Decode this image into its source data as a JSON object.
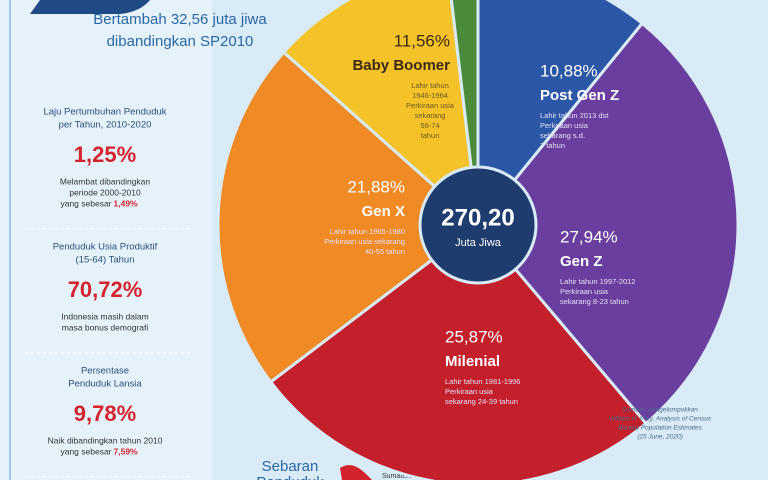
{
  "header": {
    "lines": [
      "Bertambah 32,56 juta jiwa",
      "dibandingkan SP2010"
    ]
  },
  "sidebar": [
    {
      "title": [
        "Laju Pertumbuhan Penduduk",
        "per Tahun, 2010-2020"
      ],
      "value": "1,25%",
      "note": [
        "Melambat dibandingkan",
        "periode 2000-2010",
        "yang sebesar"
      ],
      "note_highlight": "1,49%"
    },
    {
      "title": [
        "Penduduk Usia Produktif",
        "(15-64) Tahun"
      ],
      "value": "70,72%",
      "note": [
        "Indonesia masih dalam",
        "masa bonus demografi"
      ]
    },
    {
      "title": [
        "Persentase",
        "Penduduk Lansia"
      ],
      "value": "9,78%",
      "note": [
        "Naik dibandingkan tahun 2010",
        "yang sebesar"
      ],
      "note_highlight": "7,59%"
    }
  ],
  "footer": {
    "lines": [
      "Sebaran",
      "Penduduk"
    ],
    "region": "Sumatera"
  },
  "chart_data": {
    "type": "pie",
    "categories": [
      "Post Gen Z",
      "Gen Z",
      "Milenial",
      "Gen X",
      "Baby Boomer",
      null
    ],
    "values": [
      10.88,
      27.94,
      25.87,
      21.88,
      11.56,
      1.87
    ],
    "value_labels": [
      "10,88%",
      "27,94%",
      "25,87%",
      "21,88%",
      "11,56%",
      null
    ],
    "colors": [
      "#2c57a6",
      "#6a3e9f",
      "#c3202c",
      "#ef8a25",
      "#f5c22a",
      "#4b8a3b"
    ],
    "descriptions": [
      [
        "Lahir tahun 2013 dst",
        "Perkiraan usia",
        "sekarang s.d.",
        "7 tahun"
      ],
      [
        "Lahir tahun 1997-2012",
        "Perkiraan usia",
        "sekarang 8-23 tahun"
      ],
      [
        "Lahir tahun 1981-1996",
        "Perkiraan usia",
        "sekarang 24-39 tahun"
      ],
      [
        "Lahir tahun 1965-1980",
        "Perkiraan usia sekarang",
        "40-55 tahun"
      ],
      [
        "Lahir tahun",
        "1946-1964",
        "Perkiraan usia",
        "sekarang",
        "56-74",
        "tahun"
      ],
      null
    ],
    "center_value": "270,20",
    "center_unit": "Juta Jiwa",
    "source": [
      "Sumber: pengelompokkan",
      "William H. Frey, Analysis of Census",
      "Bureau Population Estimates",
      "(25 June, 2020)"
    ]
  }
}
